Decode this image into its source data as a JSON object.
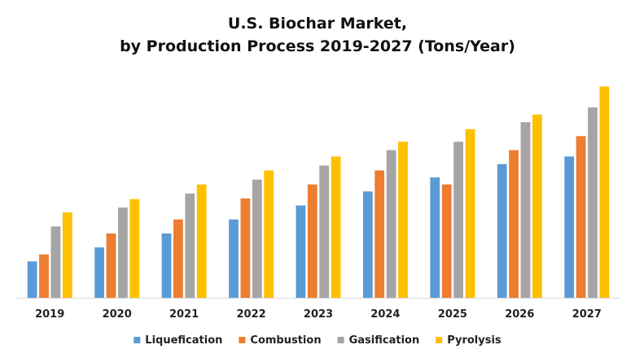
{
  "title_lines": [
    "U.S. Biochar Market,",
    "by Production Process 2019-2027 (Tons/Year)"
  ],
  "chart_data": {
    "type": "bar",
    "title": "U.S. Biochar Market, by Production Process 2019-2027 (Tons/Year)",
    "xlabel": "",
    "ylabel": "",
    "ylim": [
      0,
      300
    ],
    "grid": false,
    "legend_position": "bottom",
    "categories": [
      "2019",
      "2020",
      "2021",
      "2022",
      "2023",
      "2024",
      "2025",
      "2026",
      "2027"
    ],
    "series": [
      {
        "name": "Liquefication",
        "color": "#5B9BD5",
        "values": [
          52,
          72,
          92,
          112,
          132,
          152,
          172,
          191,
          202
        ]
      },
      {
        "name": "Combustion",
        "color": "#ED7D31",
        "values": [
          62,
          92,
          112,
          142,
          162,
          182,
          162,
          211,
          231
        ]
      },
      {
        "name": "Gasification",
        "color": "#A5A5A5",
        "values": [
          102,
          129,
          149,
          169,
          189,
          211,
          223,
          251,
          272
        ]
      },
      {
        "name": "Pyrolysis",
        "color": "#FFC000",
        "values": [
          122,
          141,
          162,
          182,
          202,
          223,
          241,
          262,
          302
        ]
      }
    ]
  }
}
